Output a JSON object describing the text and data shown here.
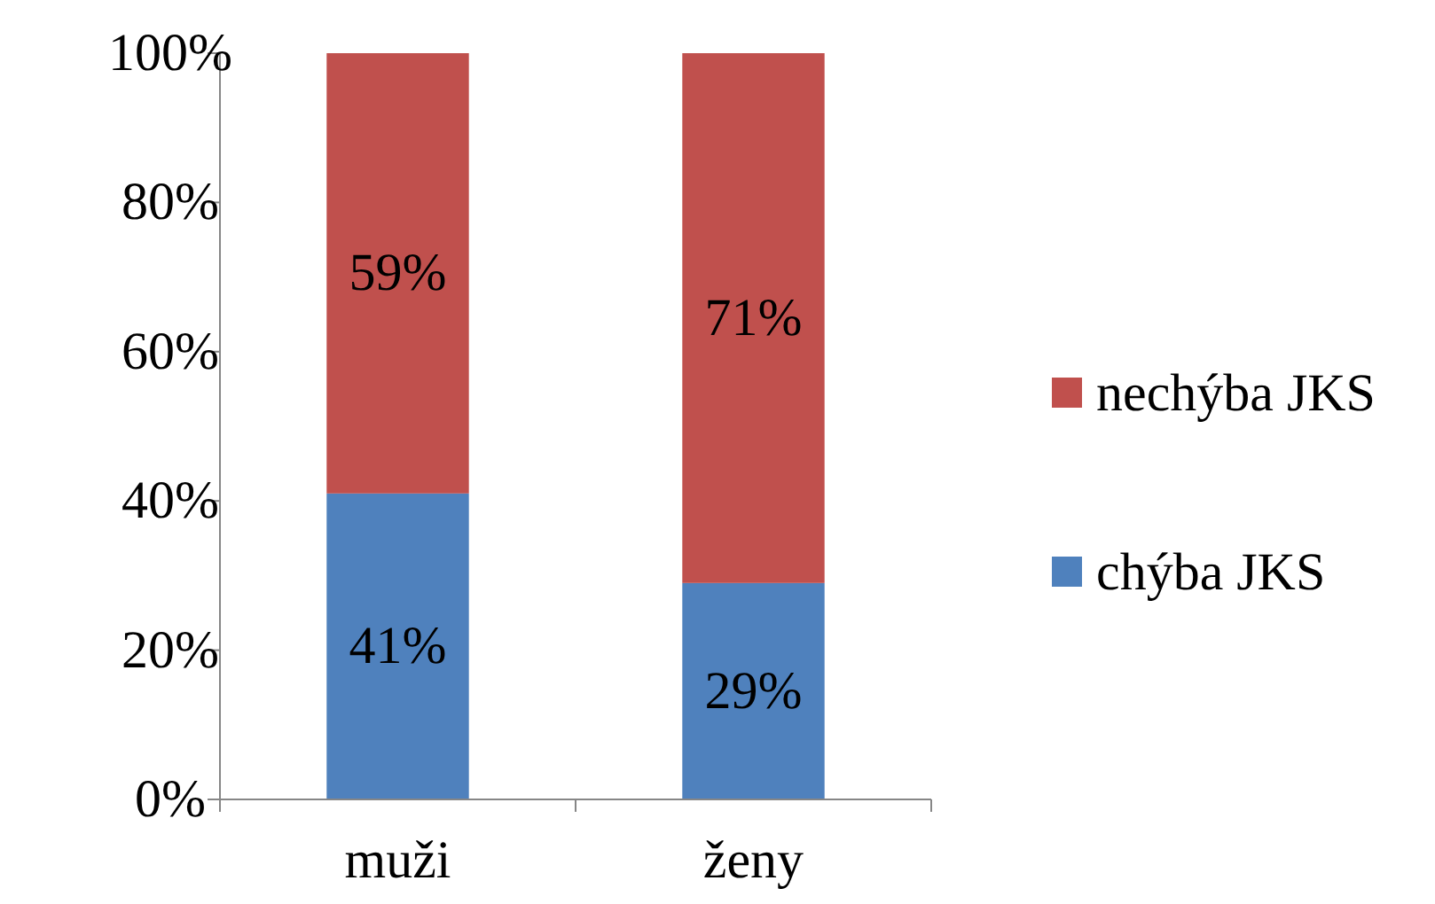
{
  "chart_data": {
    "type": "bar",
    "stacked": true,
    "categories": [
      "muži",
      "ženy"
    ],
    "series": [
      {
        "name": "chýba JKS",
        "color": "#4f81bd",
        "values": [
          41,
          29
        ],
        "value_labels": [
          "41%",
          "29%"
        ]
      },
      {
        "name": "nechýba JKS",
        "color": "#c0504d",
        "values": [
          59,
          71
        ],
        "value_labels": [
          "59%",
          "71%"
        ]
      }
    ],
    "ylim": [
      0,
      100
    ],
    "yticks": [
      {
        "value": 0,
        "label": "0%"
      },
      {
        "value": 20,
        "label": "20%"
      },
      {
        "value": 40,
        "label": "40%"
      },
      {
        "value": 60,
        "label": "60%"
      },
      {
        "value": 80,
        "label": "80%"
      },
      {
        "value": 100,
        "label": "100%"
      }
    ],
    "legend": "right",
    "grid": false
  }
}
